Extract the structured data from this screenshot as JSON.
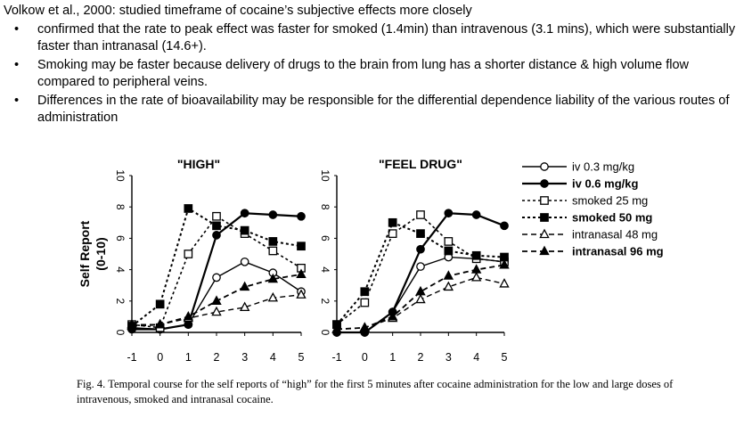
{
  "slide": {
    "title": "Volkow et al., 2000: studied timeframe of cocaine’s subjective effects more closely",
    "bullets": [
      "confirmed that the rate to peak effect was faster for smoked (1.4min) than intravenous (3.1 mins), which were substantially faster than intranasal (14.6+).",
      "Smoking may be faster because delivery of drugs to the brain from lung has a shorter distance & high volume flow compared to peripheral veins.",
      "Differences in the rate of bioavailability may be responsible for the differential dependence liability of the various routes of administration"
    ],
    "bullet_glyph": "•"
  },
  "figure": {
    "caption": "Fig. 4.  Temporal course for the self reports of “high” for the first 5 minutes after cocaine administration for the low and large doses of intravenous, smoked and intranasal cocaine."
  },
  "chart_data": [
    {
      "type": "line",
      "title": "\"HIGH\"",
      "ylabel": "Self Report\n(0-10)",
      "xlabel": "",
      "x": [
        -1,
        0,
        1,
        2,
        3,
        4,
        5
      ],
      "xticks": [
        "-1",
        "0",
        "1",
        "2",
        "3",
        "4",
        "5"
      ],
      "yticks": [
        "0",
        "2",
        "4",
        "6",
        "8",
        "10"
      ],
      "xlim": [
        -1,
        5
      ],
      "ylim": [
        0,
        10
      ],
      "series": [
        {
          "name": "iv  0.3  mg/kg",
          "values": [
            0.3,
            0.2,
            0.5,
            3.5,
            4.5,
            3.8,
            2.6
          ]
        },
        {
          "name": "iv  0.6  mg/kg",
          "values": [
            0.2,
            0.2,
            0.5,
            6.2,
            7.6,
            7.5,
            7.4
          ]
        },
        {
          "name": "smoked 25 mg",
          "values": [
            0.5,
            0.3,
            5.0,
            7.4,
            6.3,
            5.2,
            4.1
          ]
        },
        {
          "name": "smoked 50 mg",
          "values": [
            0.4,
            1.8,
            7.9,
            6.8,
            6.5,
            5.8,
            5.5
          ]
        },
        {
          "name": "intranasal  48  mg",
          "values": [
            0.5,
            0.5,
            0.9,
            1.3,
            1.6,
            2.2,
            2.4
          ]
        },
        {
          "name": "intranasal 96 mg",
          "values": [
            0.4,
            0.5,
            1.0,
            2.0,
            2.9,
            3.4,
            3.7
          ]
        }
      ]
    },
    {
      "type": "line",
      "title": "\"FEEL  DRUG\"",
      "ylabel": "",
      "xlabel": "",
      "x": [
        -1,
        0,
        1,
        2,
        3,
        4,
        5
      ],
      "xticks": [
        "-1",
        "0",
        "1",
        "2",
        "3",
        "4",
        "5"
      ],
      "yticks": [
        "0",
        "2",
        "4",
        "6",
        "8",
        "10"
      ],
      "xlim": [
        -1,
        5
      ],
      "ylim": [
        0,
        10
      ],
      "series": [
        {
          "name": "iv  0.3  mg/kg",
          "values": [
            0.0,
            0.0,
            1.3,
            4.2,
            4.8,
            4.7,
            4.5
          ]
        },
        {
          "name": "iv  0.6  mg/kg",
          "values": [
            0.0,
            0.0,
            1.3,
            5.3,
            7.6,
            7.5,
            6.8
          ]
        },
        {
          "name": "smoked 25 mg",
          "values": [
            0.5,
            1.9,
            6.3,
            7.5,
            5.8,
            4.7,
            4.5
          ]
        },
        {
          "name": "smoked 50 mg",
          "values": [
            0.5,
            2.6,
            7.0,
            6.3,
            5.2,
            4.9,
            4.8
          ]
        },
        {
          "name": "intranasal  48  mg",
          "values": [
            0.2,
            0.3,
            0.9,
            2.1,
            2.9,
            3.5,
            3.1
          ]
        },
        {
          "name": "intranasal 96 mg",
          "values": [
            0.2,
            0.3,
            1.0,
            2.6,
            3.6,
            4.0,
            4.3
          ]
        }
      ]
    }
  ]
}
